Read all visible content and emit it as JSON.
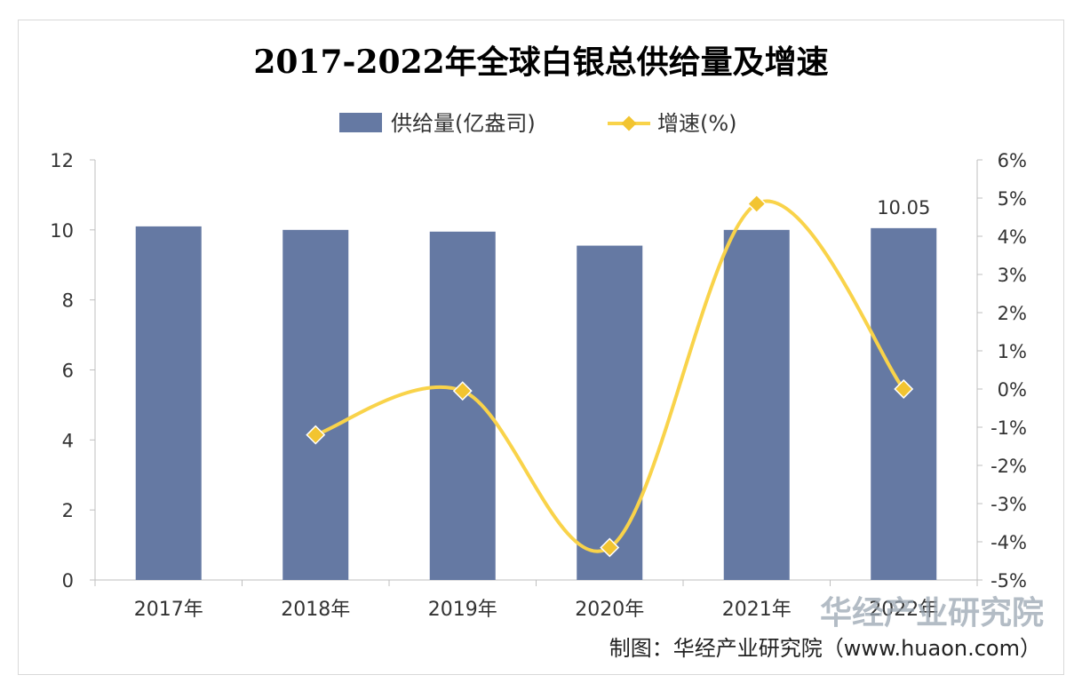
{
  "chart_data": {
    "type": "bar",
    "title": "2017-2022年全球白银总供给量及增速",
    "categories": [
      "2017年",
      "2018年",
      "2019年",
      "2020年",
      "2021年",
      "2022年"
    ],
    "series": [
      {
        "name": "供给量(亿盎司)",
        "type": "bar",
        "axis": "left",
        "values": [
          10.1,
          10.0,
          9.95,
          9.55,
          10.0,
          10.05
        ]
      },
      {
        "name": "增速(%)",
        "type": "line",
        "axis": "right",
        "values": [
          null,
          -1.2,
          -0.05,
          -4.15,
          4.85,
          0.0
        ]
      }
    ],
    "data_labels": [
      {
        "category": "2022年",
        "text": "10.05"
      }
    ],
    "y_left": {
      "min": 0,
      "max": 12,
      "ticks": [
        "0",
        "2",
        "4",
        "6",
        "8",
        "10",
        "12"
      ]
    },
    "y_right": {
      "min": -5,
      "max": 6,
      "ticks": [
        "-5%",
        "-4%",
        "-3%",
        "-2%",
        "-1%",
        "0%",
        "1%",
        "2%",
        "3%",
        "4%",
        "5%",
        "6%"
      ]
    },
    "grid": false,
    "legend_position": "top"
  },
  "colors": {
    "bar": "#6579a3",
    "line": "#f9d34a",
    "marker": "#f2c430"
  },
  "footer": {
    "credit": "制图：华经产业研究院（www.huaon.com）",
    "watermark": "华经产业研究院"
  }
}
